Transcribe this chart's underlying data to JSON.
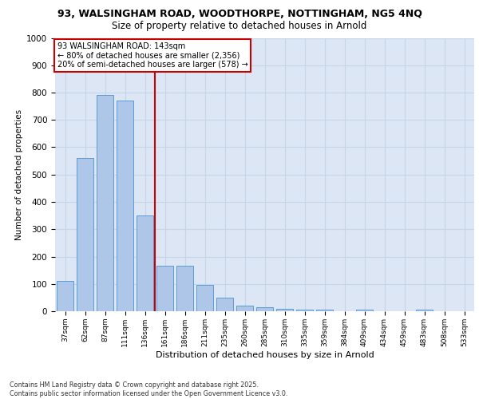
{
  "title_line1": "93, WALSINGHAM ROAD, WOODTHORPE, NOTTINGHAM, NG5 4NQ",
  "title_line2": "Size of property relative to detached houses in Arnold",
  "xlabel": "Distribution of detached houses by size in Arnold",
  "ylabel": "Number of detached properties",
  "categories": [
    "37sqm",
    "62sqm",
    "87sqm",
    "111sqm",
    "136sqm",
    "161sqm",
    "186sqm",
    "211sqm",
    "235sqm",
    "260sqm",
    "285sqm",
    "310sqm",
    "335sqm",
    "359sqm",
    "384sqm",
    "409sqm",
    "434sqm",
    "459sqm",
    "483sqm",
    "508sqm",
    "533sqm"
  ],
  "values": [
    110,
    560,
    790,
    770,
    350,
    165,
    165,
    95,
    50,
    20,
    15,
    10,
    5,
    5,
    0,
    5,
    0,
    0,
    5,
    0,
    0
  ],
  "bar_color": "#aec6e8",
  "bar_edge_color": "#5b9bd5",
  "grid_color": "#c8d4e8",
  "background_color": "#dce6f5",
  "vline_color": "#cc0000",
  "annotation_title": "93 WALSINGHAM ROAD: 143sqm",
  "annotation_line1": "← 80% of detached houses are smaller (2,356)",
  "annotation_line2": "20% of semi-detached houses are larger (578) →",
  "annotation_box_color": "#ffffff",
  "annotation_box_edge": "#cc0000",
  "ylim": [
    0,
    1000
  ],
  "yticks": [
    0,
    100,
    200,
    300,
    400,
    500,
    600,
    700,
    800,
    900,
    1000
  ],
  "vline_pos": 4.5,
  "footer_line1": "Contains HM Land Registry data © Crown copyright and database right 2025.",
  "footer_line2": "Contains public sector information licensed under the Open Government Licence v3.0."
}
